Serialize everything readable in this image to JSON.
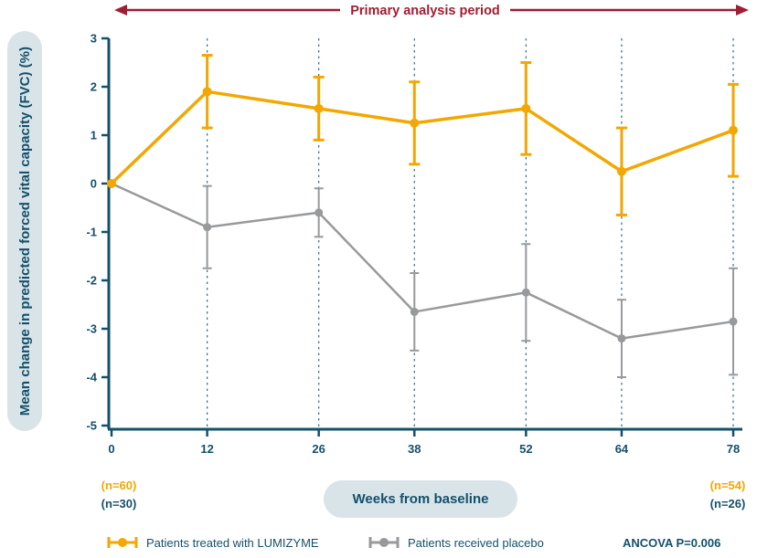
{
  "annotation": {
    "label": "Primary analysis period"
  },
  "y_axis_label": "Mean change in predicted forced vital capacity (FVC) (%)",
  "x_axis_label": "Weeks from baseline",
  "counts": {
    "treated_baseline": "(n=60)",
    "placebo_baseline": "(n=30)",
    "treated_end": "(n=54)",
    "placebo_end": "(n=26)"
  },
  "legend": {
    "treated_label": "Patients treated with LUMIZYME",
    "placebo_label": "Patients received placebo",
    "stat_note": "ANCOVA P=0.006"
  },
  "colors": {
    "treated": "#f2a702",
    "placebo": "#97999b",
    "axis_teal": "#14506a",
    "annotation_red": "#a01d33",
    "pill_background": "#d9e4e9"
  },
  "chart_data": {
    "type": "line",
    "title": "",
    "xlabel": "Weeks from baseline",
    "ylabel": "Mean change in predicted forced vital capacity (FVC) (%)",
    "x": [
      0,
      12,
      26,
      38,
      52,
      64,
      78
    ],
    "x_tick_labels": [
      "0",
      "12",
      "26",
      "38",
      "52",
      "64",
      "78"
    ],
    "ylim": [
      -5,
      3
    ],
    "xlim": [
      0,
      78
    ],
    "y_ticks": [
      3,
      2,
      1,
      0,
      -1,
      -2,
      -3,
      -4,
      -5
    ],
    "grid": "vertical-dashed",
    "legend_position": "bottom",
    "annotation": "Primary analysis period",
    "stat_note": "ANCOVA P=0.006",
    "series": [
      {
        "name": "Patients received placebo",
        "color": "#97999b",
        "values": [
          0,
          -0.9,
          -0.6,
          -2.65,
          -2.25,
          -3.2,
          -2.85
        ],
        "errors": [
          0,
          0.85,
          0.5,
          0.8,
          1.0,
          0.8,
          1.1
        ]
      },
      {
        "name": "Patients treated with LUMIZYME",
        "color": "#f2a702",
        "values": [
          0,
          1.9,
          1.55,
          1.25,
          1.55,
          0.25,
          1.1
        ],
        "errors": [
          0,
          0.75,
          0.65,
          0.85,
          0.95,
          0.9,
          0.95
        ]
      }
    ]
  }
}
